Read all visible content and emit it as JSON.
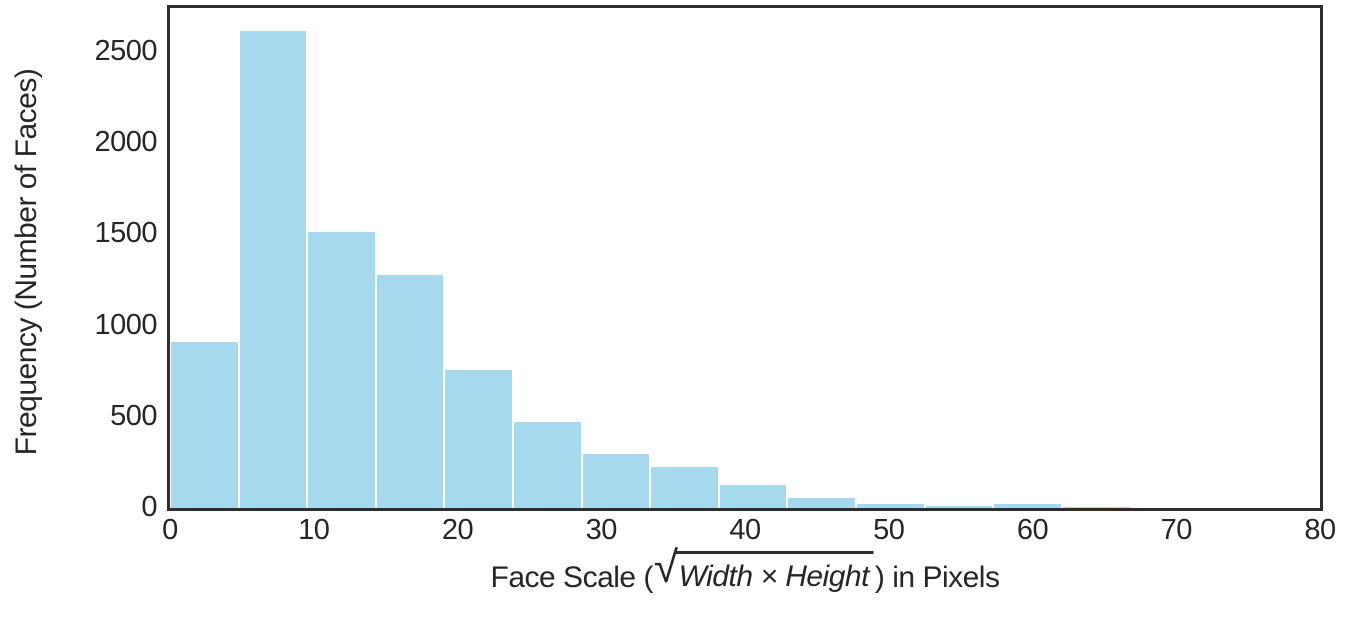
{
  "chart_data": {
    "type": "bar",
    "subtype": "histogram",
    "title": "",
    "xlabel_prefix": "Face Scale (",
    "xlabel_radicand": "Width × Height",
    "xlabel_suffix": ") in Pixels",
    "xlabel_plain_reading": "Face Scale (sqrt(Width × Height)) in Pixels",
    "ylabel": "Frequency (Number of Faces)",
    "bin_edges": [
      0.0,
      4.77,
      9.55,
      14.32,
      19.09,
      23.86,
      28.64,
      33.41,
      38.18,
      42.95,
      47.73,
      52.5,
      57.27,
      62.04,
      66.82
    ],
    "values": [
      915,
      2620,
      1520,
      1280,
      760,
      475,
      300,
      230,
      133,
      58,
      27,
      15,
      27,
      12
    ],
    "xlim": [
      0,
      80
    ],
    "ylim": [
      0,
      2740
    ],
    "xticks": [
      0,
      10,
      20,
      30,
      40,
      50,
      60,
      70,
      80
    ],
    "yticks": [
      0,
      500,
      1000,
      1500,
      2000,
      2500
    ],
    "grid": "off",
    "legend": "none",
    "colors": {
      "bar_fill": "#a6d9ee",
      "bar_edge": "#ffffff",
      "axis": "#2e2e2e",
      "text": "#262626",
      "background": "#ffffff"
    }
  }
}
